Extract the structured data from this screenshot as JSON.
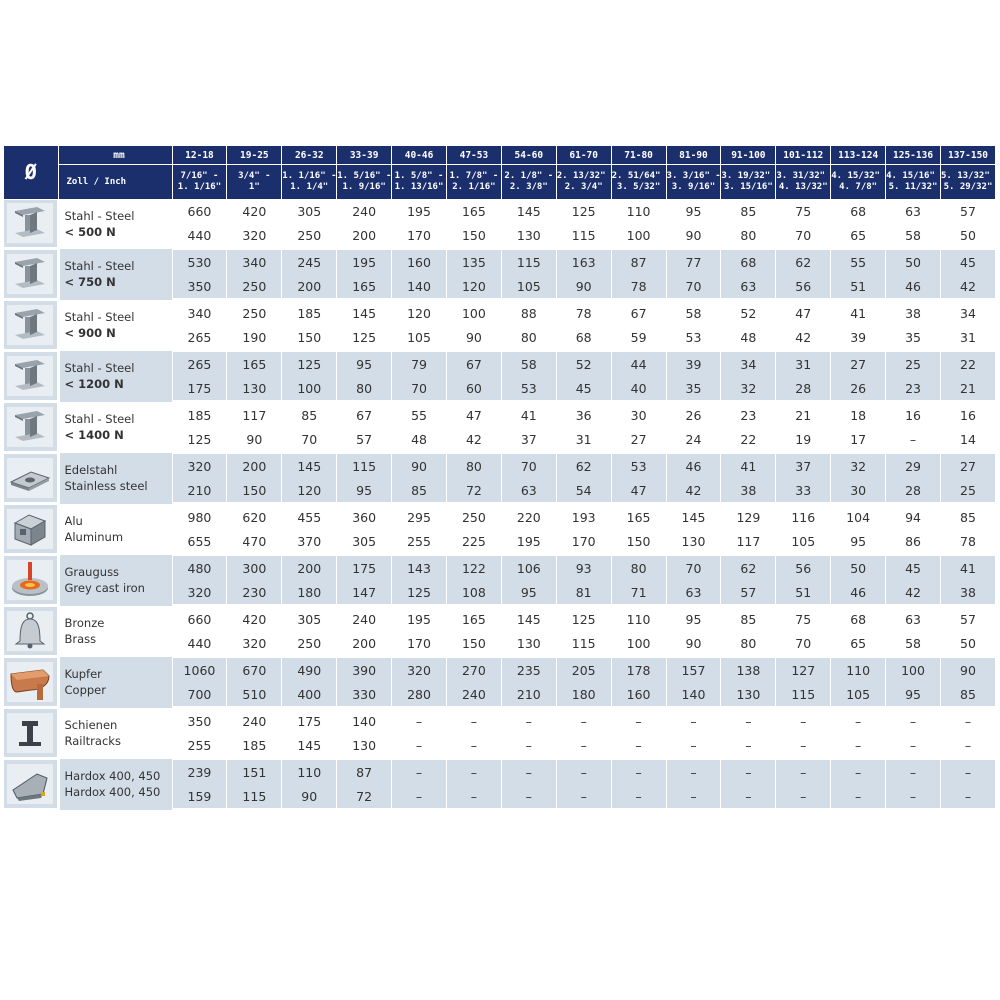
{
  "header": {
    "diameter_symbol": "Ø",
    "unit_mm": "mm",
    "unit_inch": "Zoll / Inch",
    "columns": [
      {
        "mm": "12-18",
        "inch1": "7/16\" -",
        "inch2": "1. 1/16\""
      },
      {
        "mm": "19-25",
        "inch1": "3/4\" -",
        "inch2": "1\""
      },
      {
        "mm": "26-32",
        "inch1": "1. 1/16\" -",
        "inch2": "1. 1/4\""
      },
      {
        "mm": "33-39",
        "inch1": "1. 5/16\" -",
        "inch2": "1. 9/16\""
      },
      {
        "mm": "40-46",
        "inch1": "1. 5/8\" -",
        "inch2": "1. 13/16\""
      },
      {
        "mm": "47-53",
        "inch1": "1. 7/8\" -",
        "inch2": "2. 1/16\""
      },
      {
        "mm": "54-60",
        "inch1": "2. 1/8\" -",
        "inch2": "2. 3/8\""
      },
      {
        "mm": "61-70",
        "inch1": "2. 13/32\" -",
        "inch2": "2. 3/4\""
      },
      {
        "mm": "71-80",
        "inch1": "2. 51/64\" -",
        "inch2": "3. 5/32\""
      },
      {
        "mm": "81-90",
        "inch1": "3. 3/16\" -",
        "inch2": "3. 9/16\""
      },
      {
        "mm": "91-100",
        "inch1": "3. 19/32\" -",
        "inch2": "3. 15/16\""
      },
      {
        "mm": "101-112",
        "inch1": "3. 31/32\" -",
        "inch2": "4. 13/32\""
      },
      {
        "mm": "113-124",
        "inch1": "4. 15/32\" -",
        "inch2": "4. 7/8\""
      },
      {
        "mm": "125-136",
        "inch1": "4. 15/16\" -",
        "inch2": "5. 11/32\""
      },
      {
        "mm": "137-150",
        "inch1": "5. 13/32\" -",
        "inch2": "5. 29/32\""
      }
    ]
  },
  "rows": [
    {
      "icon": "steel-beam-icon",
      "label1": "Stahl - Steel",
      "label2": "< 500 N",
      "label2_bold": true,
      "top": [
        "660",
        "420",
        "305",
        "240",
        "195",
        "165",
        "145",
        "125",
        "110",
        "95",
        "85",
        "75",
        "68",
        "63",
        "57"
      ],
      "bottom": [
        "440",
        "320",
        "250",
        "200",
        "170",
        "150",
        "130",
        "115",
        "100",
        "90",
        "80",
        "70",
        "65",
        "58",
        "50"
      ]
    },
    {
      "icon": "steel-beam-icon",
      "label1": "Stahl - Steel",
      "label2": "< 750 N",
      "label2_bold": true,
      "top": [
        "530",
        "340",
        "245",
        "195",
        "160",
        "135",
        "115",
        "163",
        "87",
        "77",
        "68",
        "62",
        "55",
        "50",
        "45"
      ],
      "bottom": [
        "350",
        "250",
        "200",
        "165",
        "140",
        "120",
        "105",
        "90",
        "78",
        "70",
        "63",
        "56",
        "51",
        "46",
        "42"
      ]
    },
    {
      "icon": "steel-beam-icon",
      "label1": "Stahl - Steel",
      "label2": "< 900 N",
      "label2_bold": true,
      "top": [
        "340",
        "250",
        "185",
        "145",
        "120",
        "100",
        "88",
        "78",
        "67",
        "58",
        "52",
        "47",
        "41",
        "38",
        "34"
      ],
      "bottom": [
        "265",
        "190",
        "150",
        "125",
        "105",
        "90",
        "80",
        "68",
        "59",
        "53",
        "48",
        "42",
        "39",
        "35",
        "31"
      ]
    },
    {
      "icon": "steel-beam-icon",
      "label1": "Stahl - Steel",
      "label2": "< 1200 N",
      "label2_bold": true,
      "top": [
        "265",
        "165",
        "125",
        "95",
        "79",
        "67",
        "58",
        "52",
        "44",
        "39",
        "34",
        "31",
        "27",
        "25",
        "22"
      ],
      "bottom": [
        "175",
        "130",
        "100",
        "80",
        "70",
        "60",
        "53",
        "45",
        "40",
        "35",
        "32",
        "28",
        "26",
        "23",
        "21"
      ]
    },
    {
      "icon": "steel-beam-icon",
      "label1": "Stahl - Steel",
      "label2": "< 1400 N",
      "label2_bold": true,
      "top": [
        "185",
        "117",
        "85",
        "67",
        "55",
        "47",
        "41",
        "36",
        "30",
        "26",
        "23",
        "21",
        "18",
        "16",
        "16"
      ],
      "bottom": [
        "125",
        "90",
        "70",
        "57",
        "48",
        "42",
        "37",
        "31",
        "27",
        "24",
        "22",
        "19",
        "17",
        "–",
        "14"
      ]
    },
    {
      "icon": "stainless-plate-icon",
      "label1": "Edelstahl",
      "label2": "Stainless steel",
      "label2_bold": false,
      "top": [
        "320",
        "200",
        "145",
        "115",
        "90",
        "80",
        "70",
        "62",
        "53",
        "46",
        "41",
        "37",
        "32",
        "29",
        "27"
      ],
      "bottom": [
        "210",
        "150",
        "120",
        "95",
        "85",
        "72",
        "63",
        "54",
        "47",
        "42",
        "38",
        "33",
        "30",
        "28",
        "25"
      ]
    },
    {
      "icon": "aluminum-profile-icon",
      "label1": "Alu",
      "label2": "Aluminum",
      "label2_bold": false,
      "top": [
        "980",
        "620",
        "455",
        "360",
        "295",
        "250",
        "220",
        "193",
        "165",
        "145",
        "129",
        "116",
        "104",
        "94",
        "85"
      ],
      "bottom": [
        "655",
        "470",
        "370",
        "305",
        "255",
        "225",
        "195",
        "170",
        "150",
        "130",
        "117",
        "105",
        "95",
        "86",
        "78"
      ]
    },
    {
      "icon": "cast-iron-icon",
      "label1": "Grauguss",
      "label2": "Grey cast iron",
      "label2_bold": false,
      "top": [
        "480",
        "300",
        "200",
        "175",
        "143",
        "122",
        "106",
        "93",
        "80",
        "70",
        "62",
        "56",
        "50",
        "45",
        "41"
      ],
      "bottom": [
        "320",
        "230",
        "180",
        "147",
        "125",
        "108",
        "95",
        "81",
        "71",
        "63",
        "57",
        "51",
        "46",
        "42",
        "38"
      ]
    },
    {
      "icon": "bell-icon",
      "label1": "Bronze",
      "label2": "Brass",
      "label2_bold": false,
      "top": [
        "660",
        "420",
        "305",
        "240",
        "195",
        "165",
        "145",
        "125",
        "110",
        "95",
        "85",
        "75",
        "68",
        "63",
        "57"
      ],
      "bottom": [
        "440",
        "320",
        "250",
        "200",
        "170",
        "150",
        "130",
        "115",
        "100",
        "90",
        "80",
        "70",
        "65",
        "58",
        "50"
      ]
    },
    {
      "icon": "copper-gutter-icon",
      "label1": "Kupfer",
      "label2": "Copper",
      "label2_bold": false,
      "top": [
        "1060",
        "670",
        "490",
        "390",
        "320",
        "270",
        "235",
        "205",
        "178",
        "157",
        "138",
        "127",
        "110",
        "100",
        "90"
      ],
      "bottom": [
        "700",
        "510",
        "400",
        "330",
        "280",
        "240",
        "210",
        "180",
        "160",
        "140",
        "130",
        "115",
        "105",
        "95",
        "85"
      ]
    },
    {
      "icon": "rail-icon",
      "label1": "Schienen",
      "label2": "Railtracks",
      "label2_bold": false,
      "top": [
        "350",
        "240",
        "175",
        "140",
        "–",
        "–",
        "–",
        "–",
        "–",
        "–",
        "–",
        "–",
        "–",
        "–",
        "–"
      ],
      "bottom": [
        "255",
        "185",
        "145",
        "130",
        "–",
        "–",
        "–",
        "–",
        "–",
        "–",
        "–",
        "–",
        "–",
        "–",
        "–"
      ]
    },
    {
      "icon": "excavator-bucket-icon",
      "label1": "Hardox 400, 450",
      "label2": "Hardox 400, 450",
      "label2_bold": false,
      "top": [
        "239",
        "151",
        "110",
        "87",
        "–",
        "–",
        "–",
        "–",
        "–",
        "–",
        "–",
        "–",
        "–",
        "–",
        "–"
      ],
      "bottom": [
        "159",
        "115",
        "90",
        "72",
        "–",
        "–",
        "–",
        "–",
        "–",
        "–",
        "–",
        "–",
        "–",
        "–",
        "–"
      ]
    }
  ]
}
